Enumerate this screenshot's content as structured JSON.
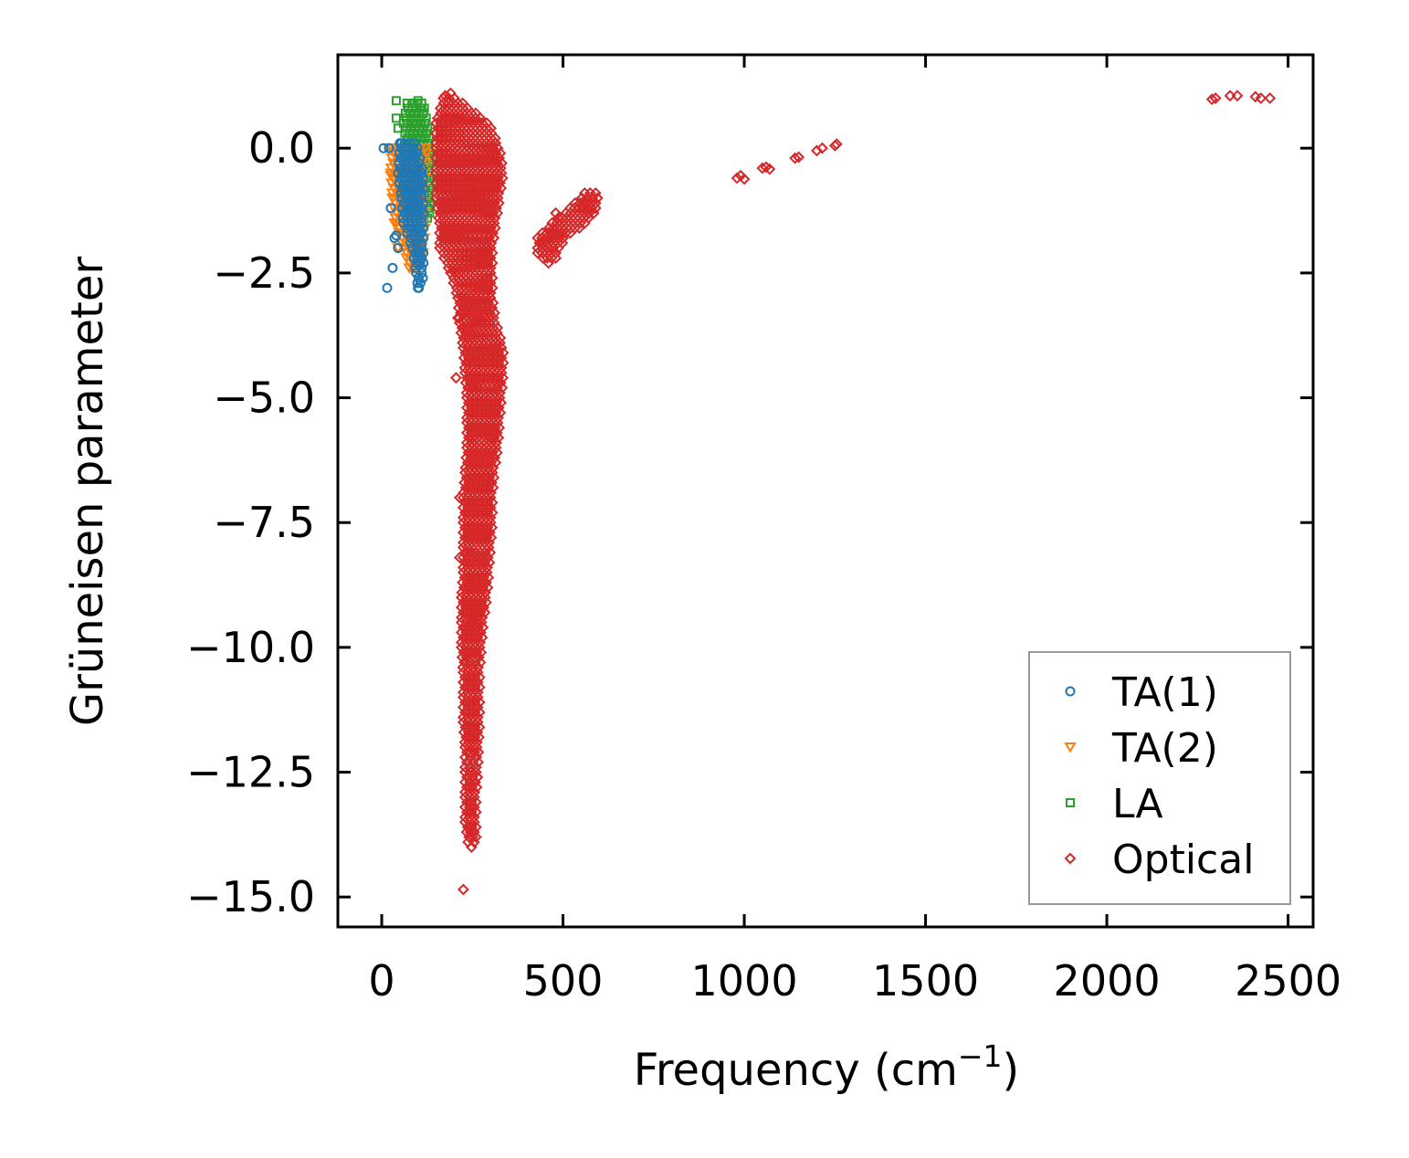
{
  "chart_data": {
    "type": "scatter",
    "xlabel": "Frequency (cm",
    "xlabel_sup": "−1",
    "xlabel_close": ")",
    "ylabel": "Grüneisen parameter",
    "xlim": [
      -121,
      2569
    ],
    "ylim": [
      -15.6,
      1.87
    ],
    "xticks": [
      0,
      500,
      1000,
      1500,
      2000,
      2500
    ],
    "xtick_labels": [
      "0",
      "500",
      "1000",
      "1500",
      "2000",
      "2500"
    ],
    "yticks": [
      0,
      -2.5,
      -5,
      -7.5,
      -10,
      -12.5,
      -15
    ],
    "ytick_labels": [
      "0.0",
      "−2.5",
      "−5.0",
      "−7.5",
      "−10.0",
      "−12.5",
      "−15.0"
    ],
    "grid": false,
    "legend_position": "lower-right",
    "series": [
      {
        "name": "LA",
        "marker": "square",
        "color": "#2ca02c",
        "dense_regions": [
          [
            [
              0.9,
              70,
              110
            ],
            [
              0.5,
              60,
              120
            ],
            [
              0,
              70,
              130
            ],
            [
              -0.5,
              80,
              130
            ],
            [
              -1,
              95,
              130
            ],
            [
              -1.5,
              105,
              125
            ]
          ]
        ],
        "points": [
          [
            40,
            0.95
          ],
          [
            40,
            0.6
          ],
          [
            45,
            0.4
          ],
          [
            85,
            0.9
          ],
          [
            100,
            0.95
          ],
          [
            90,
            0.5
          ],
          [
            110,
            0.8
          ]
        ]
      },
      {
        "name": "TA(2)",
        "marker": "triangle-down",
        "color": "#ff7f0e",
        "dense_regions": [
          [
            [
              0,
              30,
              120
            ],
            [
              -0.5,
              25,
              115
            ],
            [
              -1,
              30,
              110
            ],
            [
              -1.5,
              40,
              115
            ],
            [
              -2,
              60,
              110
            ],
            [
              -2.5,
              80,
              100
            ]
          ]
        ],
        "points": [
          [
            25,
            -0.55
          ],
          [
            30,
            -1.0
          ],
          [
            35,
            -1.5
          ],
          [
            20,
            0
          ],
          [
            45,
            -2.0
          ]
        ]
      },
      {
        "name": "TA(1)",
        "marker": "circle",
        "color": "#1f77b4",
        "dense_regions": [
          [
            [
              0.1,
              50,
              90
            ],
            [
              -0.5,
              45,
              110
            ],
            [
              -1,
              55,
              110
            ],
            [
              -1.5,
              60,
              110
            ],
            [
              -2,
              85,
              110
            ],
            [
              -2.5,
              95,
              110
            ],
            [
              -2.8,
              100,
              105
            ]
          ]
        ],
        "points": [
          [
            5,
            0
          ],
          [
            20,
            0
          ],
          [
            25,
            -1.2
          ],
          [
            35,
            -1.8
          ],
          [
            45,
            -2.0
          ],
          [
            30,
            -2.4
          ],
          [
            15,
            -2.8
          ],
          [
            100,
            -2.8
          ],
          [
            55,
            0.1
          ],
          [
            40,
            -1.75
          ]
        ]
      },
      {
        "name": "Optical",
        "marker": "diamond",
        "color": "#d62728",
        "dense_regions": [
          [
            [
              1.0,
              170,
              200
            ],
            [
              0.5,
              150,
              290
            ],
            [
              0,
              150,
              320
            ],
            [
              -0.5,
              150,
              330
            ],
            [
              -1.0,
              150,
              320
            ],
            [
              -1.5,
              160,
              310
            ],
            [
              -2.0,
              160,
              300
            ],
            [
              -2.5,
              190,
              300
            ],
            [
              -3.0,
              210,
              300
            ],
            [
              -3.5,
              215,
              310
            ],
            [
              -4.0,
              225,
              330
            ],
            [
              -4.5,
              230,
              330
            ],
            [
              -5.0,
              235,
              325
            ],
            [
              -5.5,
              235,
              320
            ],
            [
              -6.0,
              235,
              315
            ],
            [
              -6.5,
              230,
              305
            ],
            [
              -7.0,
              225,
              300
            ],
            [
              -7.5,
              225,
              300
            ],
            [
              -8.0,
              225,
              295
            ],
            [
              -8.5,
              225,
              290
            ],
            [
              -9.0,
              220,
              285
            ],
            [
              -9.5,
              220,
              275
            ],
            [
              -10,
              220,
              270
            ],
            [
              -10.5,
              225,
              265
            ],
            [
              -11,
              225,
              265
            ],
            [
              -11.5,
              225,
              265
            ],
            [
              -12,
              230,
              262
            ],
            [
              -12.5,
              230,
              260
            ],
            [
              -13,
              230,
              255
            ],
            [
              -13.5,
              230,
              255
            ],
            [
              -14,
              240,
              255
            ]
          ],
          [
            [
              -0.9,
              560,
              590
            ],
            [
              -1.2,
              520,
              590
            ],
            [
              -1.5,
              470,
              560
            ],
            [
              -1.8,
              430,
              500
            ],
            [
              -2.1,
              430,
              480
            ],
            [
              -2.3,
              450,
              470
            ]
          ]
        ],
        "points": [
          [
            225,
            -14.85
          ],
          [
            215,
            -8.2
          ],
          [
            215,
            -7.0
          ],
          [
            205,
            -4.6
          ],
          [
            210,
            -3.4
          ],
          [
            480,
            -1.3
          ],
          [
            175,
            1.05
          ],
          [
            190,
            1.1
          ],
          [
            980,
            -0.6
          ],
          [
            990,
            -0.55
          ],
          [
            1000,
            -0.62
          ],
          [
            1050,
            -0.4
          ],
          [
            1060,
            -0.38
          ],
          [
            1070,
            -0.42
          ],
          [
            1140,
            -0.2
          ],
          [
            1150,
            -0.18
          ],
          [
            1200,
            -0.05
          ],
          [
            1215,
            0
          ],
          [
            1250,
            0.05
          ],
          [
            1255,
            0.08
          ],
          [
            2290,
            0.98
          ],
          [
            2300,
            1.0
          ],
          [
            2340,
            1.05
          ],
          [
            2360,
            1.05
          ],
          [
            2410,
            1.03
          ],
          [
            2425,
            1.0
          ],
          [
            2450,
            1.0
          ]
        ]
      }
    ],
    "legend_order": [
      2,
      1,
      0,
      3
    ]
  }
}
